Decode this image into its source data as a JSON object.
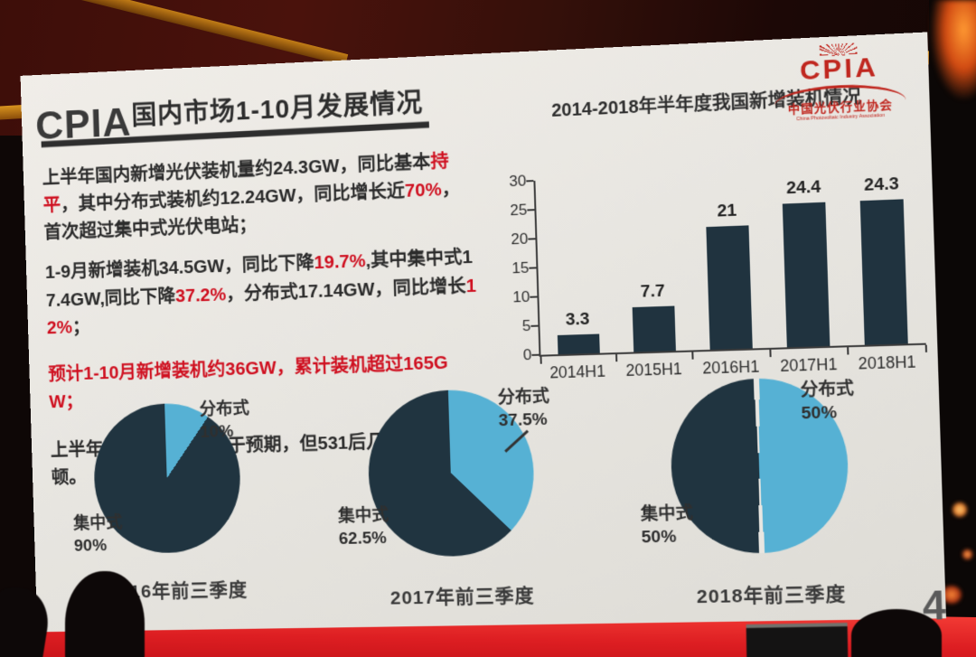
{
  "page_number": "4",
  "header": {
    "wordmark": "CPIA",
    "title": "国内市场1-10月发展情况"
  },
  "brand": {
    "name": "CPIA",
    "cn": "中国光伏行业协会",
    "en": "China Photovoltaic Industry Association",
    "color": "#c0271f"
  },
  "bullets": [
    {
      "segments": [
        {
          "t": "上半年国内新增光伏装机量约24.3GW，同比基本",
          "c": "dark"
        },
        {
          "t": "持平",
          "c": "red"
        },
        {
          "t": "，其中分布式装机约12.24GW，同比增长近",
          "c": "dark"
        },
        {
          "t": "70%",
          "c": "red"
        },
        {
          "t": "，首次超过集中式光伏电站；",
          "c": "dark"
        }
      ]
    },
    {
      "segments": [
        {
          "t": "1-9月新增装机34.5GW，同比下降",
          "c": "dark"
        },
        {
          "t": "19.7%",
          "c": "red"
        },
        {
          "t": ",其中集中式17.4GW,同比下降",
          "c": "dark"
        },
        {
          "t": "37.2%",
          "c": "red"
        },
        {
          "t": "，分布式17.14GW，同比增长",
          "c": "dark"
        },
        {
          "t": "12%",
          "c": "red"
        },
        {
          "t": "；",
          "c": "dark"
        }
      ]
    },
    {
      "segments": [
        {
          "t": "预计1-10月新增装机约36GW，累计装机超过165GW；",
          "c": "red"
        }
      ]
    },
    {
      "segments": [
        {
          "t": "上半年户用发展速度快于预期，但531后几乎陷于停顿。",
          "c": "dark"
        }
      ]
    }
  ],
  "chart_data": [
    {
      "type": "bar",
      "title": "2014-2018年半年度我国新增装机情况",
      "categories": [
        "2014H1",
        "2015H1",
        "2016H1",
        "2017H1",
        "2018H1"
      ],
      "values": [
        3.3,
        7.7,
        21,
        24.4,
        24.3
      ],
      "ylim": [
        0,
        30
      ],
      "yticks": [
        0,
        5,
        10,
        15,
        20,
        25,
        30
      ],
      "xlabel": "",
      "ylabel": "",
      "grid": false,
      "legend": false,
      "bar_color": "#20333f"
    },
    {
      "type": "pie",
      "caption": "2016年前三季度",
      "slices": [
        {
          "label": "分布式",
          "value": 10,
          "pct": "10%",
          "color": "#56b1d4"
        },
        {
          "label": "集中式",
          "value": 90,
          "pct": "90%",
          "color": "#203440"
        }
      ]
    },
    {
      "type": "pie",
      "caption": "2017年前三季度",
      "slices": [
        {
          "label": "分布式",
          "value": 37.5,
          "pct": "37.5%",
          "color": "#56b1d4"
        },
        {
          "label": "集中式",
          "value": 62.5,
          "pct": "62.5%",
          "color": "#203440"
        }
      ]
    },
    {
      "type": "pie",
      "caption": "2018年前三季度",
      "divider": true,
      "slices": [
        {
          "label": "分布式",
          "value": 50,
          "pct": "50%",
          "color": "#56b1d4"
        },
        {
          "label": "集中式",
          "value": 50,
          "pct": "50%",
          "color": "#203440"
        }
      ]
    }
  ]
}
